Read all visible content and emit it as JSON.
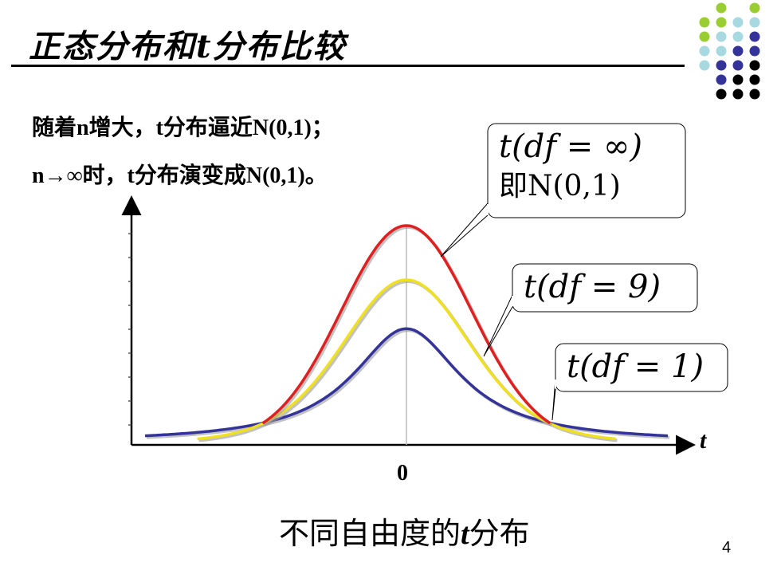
{
  "slide": {
    "title": "正态分布和t分布比较",
    "line1": "随着n增大，t分布逼近N(0,1)；",
    "line2": "n→∞时，t分布演变成N(0,1)。",
    "caption_prefix": "不同自由度的",
    "caption_italic": "t",
    "caption_suffix": "分布",
    "page_number": "4"
  },
  "chart_data": {
    "type": "line",
    "title": "",
    "xlabel": "t",
    "ylabel": "",
    "x_tick_labels": [
      "0"
    ],
    "xlim": [
      -4,
      4
    ],
    "ylim": [
      0,
      0.4
    ],
    "grid": false,
    "series": [
      {
        "name": "t(df = ∞) 即N(0,1)",
        "color": "#e02020",
        "df": "inf",
        "x_range": [
          -2.2,
          2.2
        ],
        "peak": 0.4
      },
      {
        "name": "t(df = 9)",
        "color": "#f0e020",
        "df": 9,
        "x_range": [
          -3.2,
          3.2
        ],
        "peak": 0.3
      },
      {
        "name": "t(df = 1)",
        "color": "#333399",
        "df": 1,
        "x_range": [
          -4,
          4
        ],
        "peak": 0.21
      }
    ],
    "callouts": [
      {
        "line1": "t(df = ∞)",
        "line2": "即N(0,1)"
      },
      {
        "line1": "t(df = 9)"
      },
      {
        "line1": "t(df = 1)"
      }
    ]
  },
  "decor": {
    "dot_colors": [
      "#9acd32",
      "#a8d8e0",
      "#333399",
      "#000000"
    ]
  }
}
